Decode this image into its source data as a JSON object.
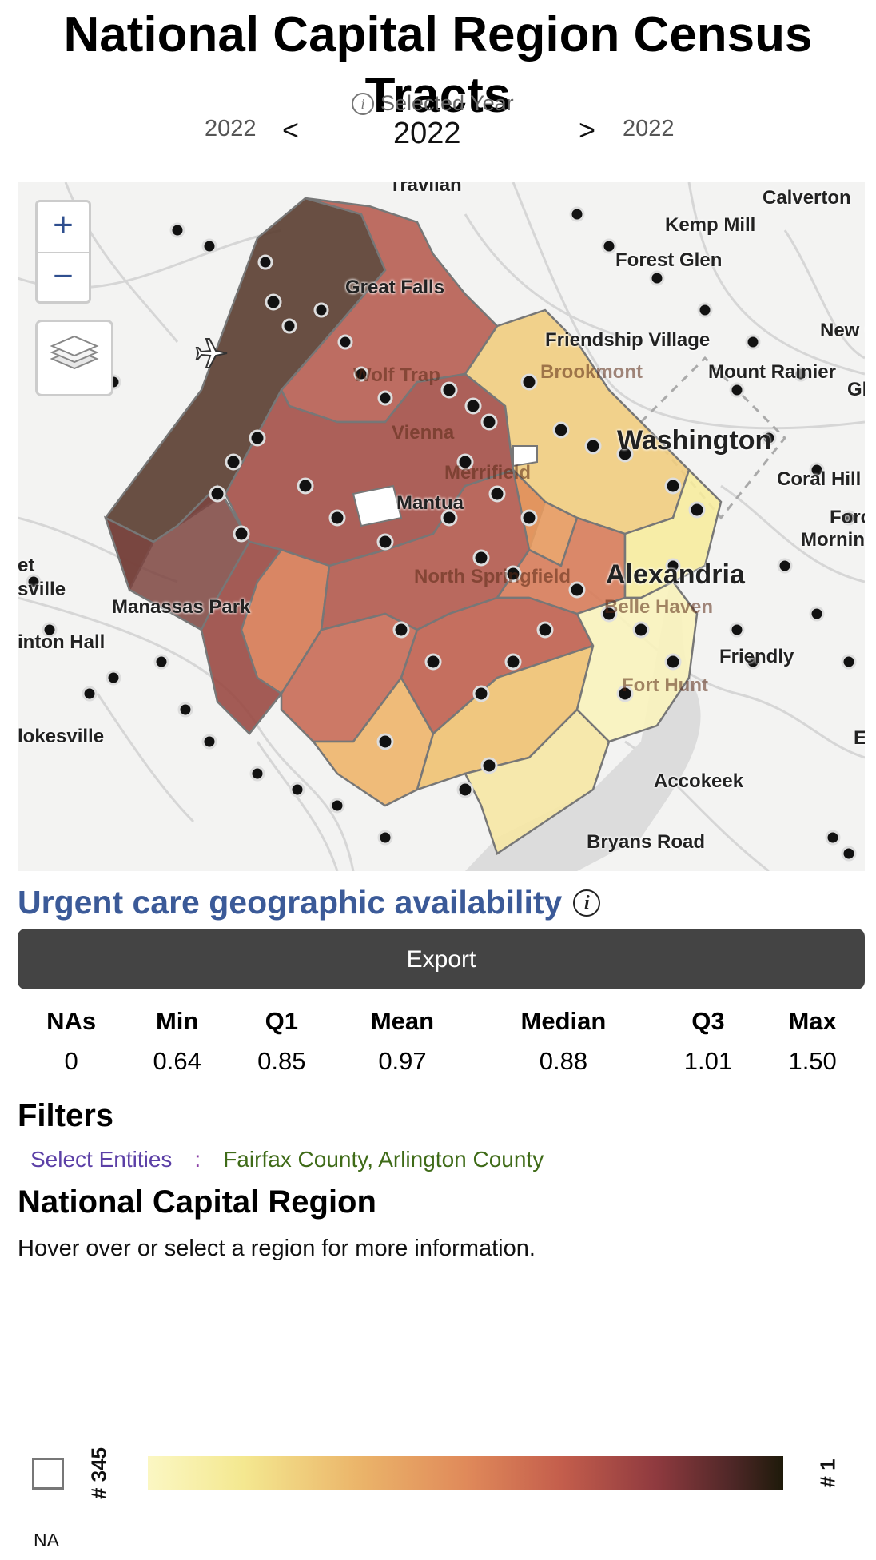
{
  "page": {
    "title": "National Capital Region Census Tracts"
  },
  "year_selector": {
    "label": "Selected Year",
    "prev_year": "2022",
    "current_year": "2022",
    "next_year": "2022",
    "prev_arrow": "<",
    "next_arrow": ">"
  },
  "map": {
    "zoom_in": "+",
    "zoom_out": "−",
    "labels": [
      "Travilah",
      "Calverton",
      "Kemp Mill",
      "Forest Glen",
      "Great Falls",
      "Friendship Village",
      "New C",
      "Brookmont",
      "Mount Rainier",
      "Gl",
      "Wolf Trap",
      "Vienna",
      "Washington",
      "Coral Hill",
      "Merrifield",
      "Mantua",
      "Forc",
      "Mornin",
      "North Springfield",
      "Alexandria",
      "et",
      "sville",
      "Manassas Park",
      "Belle Haven",
      "Friendly",
      "inton Hall",
      "Fort Hunt",
      "lokesville",
      "E",
      "Accokeek",
      "Bryans Road"
    ]
  },
  "measure": {
    "title": "Urgent care geographic availability",
    "export_label": "Export"
  },
  "stats": {
    "headers": [
      "NAs",
      "Min",
      "Q1",
      "Mean",
      "Median",
      "Q3",
      "Max"
    ],
    "values": [
      "0",
      "0.64",
      "0.85",
      "0.97",
      "0.88",
      "1.01",
      "1.50"
    ]
  },
  "filters": {
    "title": "Filters",
    "key": "Select Entities",
    "separator": ":",
    "value": "Fairfax County, Arlington County"
  },
  "region": {
    "title": "National Capital Region",
    "hint": "Hover over or select a region for more information."
  },
  "legend": {
    "na_label": "NA",
    "low_rank": "# 345",
    "high_rank": "# 1"
  },
  "colors": {
    "accent": "#3b5a98",
    "export_bg": "#444444"
  }
}
